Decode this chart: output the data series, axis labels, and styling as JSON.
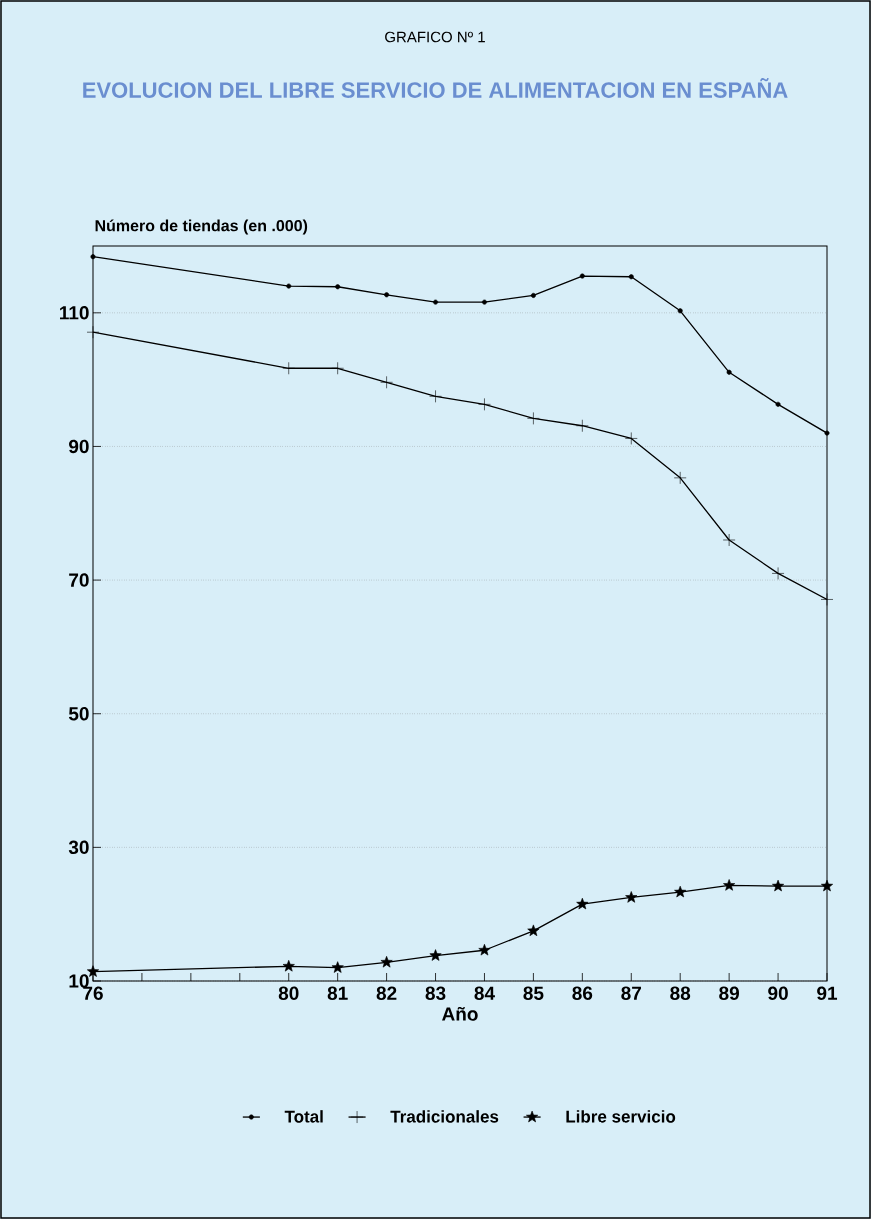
{
  "chart_data": {
    "type": "line",
    "title": "GRAFICO Nº 1",
    "subtitle": "EVOLUCION DEL LIBRE SERVICIO DE ALIMENTACION EN ESPAÑA",
    "xlabel": "Año",
    "ylabel": "Número de tiendas (en .000)",
    "x": [
      76,
      80,
      81,
      82,
      83,
      84,
      85,
      86,
      87,
      88,
      89,
      90,
      91
    ],
    "series": [
      {
        "name": "Total",
        "color": "#000000",
        "marker": "circle",
        "values": [
          118.4,
          114.0,
          113.9,
          112.7,
          111.6,
          111.6,
          112.6,
          115.5,
          115.4,
          110.3,
          101.1,
          96.3,
          92.0
        ]
      },
      {
        "name": "Tradicionales",
        "color": "#000000",
        "marker": "cross",
        "values": [
          107.1,
          101.7,
          101.7,
          99.6,
          97.5,
          96.3,
          94.2,
          93.1,
          91.2,
          85.3,
          76.0,
          71.0,
          67.1
        ]
      },
      {
        "name": "Libre servicio",
        "color": "#000000",
        "marker": "star",
        "values": [
          11.4,
          12.2,
          12.0,
          12.8,
          13.8,
          14.6,
          17.5,
          21.5,
          22.5,
          23.3,
          24.3,
          24.2,
          24.2
        ]
      }
    ],
    "xlim": [
      76,
      91
    ],
    "xticks": [
      76,
      {
        "value": 77,
        "label": null
      },
      {
        "value": 78,
        "label": null
      },
      {
        "value": 79,
        "label": null
      },
      80,
      81,
      82,
      83,
      84,
      85,
      86,
      87,
      88,
      89,
      90,
      91
    ],
    "ylim": [
      10,
      120
    ],
    "yticks": [
      10,
      30,
      50,
      70,
      90,
      110
    ],
    "grid": "y",
    "legend": "bottom",
    "line_style": "solid"
  }
}
